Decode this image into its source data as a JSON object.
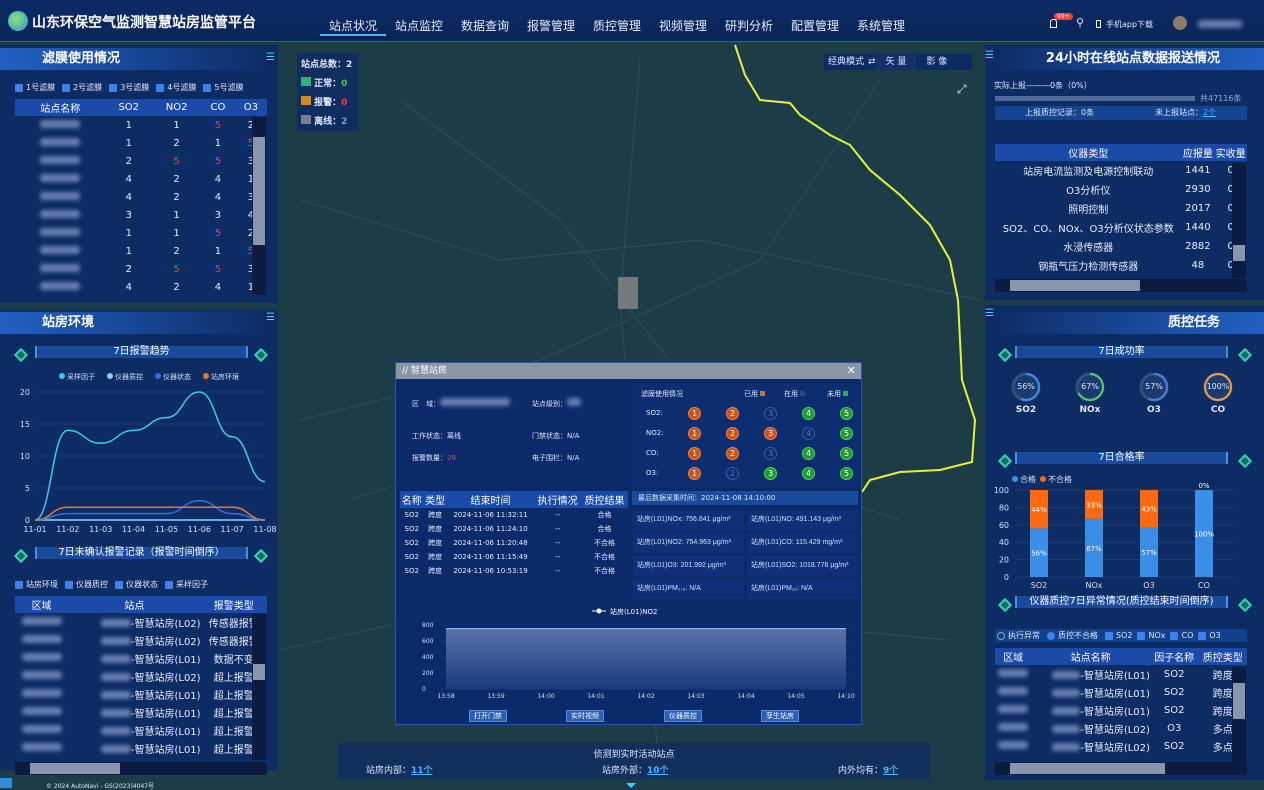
{
  "header": {
    "title": "山东环保空气监测智慧站房监管平台",
    "nav": [
      "站点状况",
      "站点监控",
      "数据查询",
      "报警管理",
      "质控管理",
      "视频管理",
      "研判分析",
      "配置管理",
      "系统管理"
    ],
    "active_nav": "站点状况",
    "badge": "99+",
    "app_download": "手机app下载"
  },
  "map": {
    "total_label": "站点总数：",
    "total": "2",
    "normal_label": "正常：",
    "normal": "0",
    "alarm_label": "报警：",
    "alarm": "0",
    "offline_label": "离线：",
    "offline": "2",
    "mode_label": "经典模式",
    "vector": "矢 量",
    "image": "影 像",
    "copyright": "© 2024 AutoNavi - GS(2023)4047号"
  },
  "filter_usage": {
    "title": "滤膜使用情况",
    "checks": [
      "1号滤膜",
      "2号滤膜",
      "3号滤膜",
      "4号滤膜",
      "5号滤膜"
    ],
    "columns": [
      "站点名称",
      "SO2",
      "NO2",
      "CO",
      "O3"
    ],
    "rows": [
      [
        1,
        1,
        5,
        2
      ],
      [
        1,
        2,
        1,
        5
      ],
      [
        2,
        5,
        5,
        3
      ],
      [
        4,
        2,
        4,
        1
      ],
      [
        4,
        2,
        4,
        3
      ],
      [
        3,
        1,
        3,
        4
      ],
      [
        1,
        1,
        5,
        2
      ],
      [
        1,
        2,
        1,
        5
      ],
      [
        2,
        5,
        5,
        3
      ],
      [
        4,
        2,
        4,
        1
      ]
    ]
  },
  "room_env": {
    "title": "站房环境",
    "trend_title": "7日报警趋势",
    "unconfirmed_title": "7日未确认报警记录（报警时间倒序）",
    "checks": [
      "站房环境",
      "仪器质控",
      "仪器状态",
      "采样因子"
    ],
    "columns": [
      "区域",
      "站点",
      "报警类型"
    ],
    "rows": [
      [
        "-智慧站房(L02)",
        "传感器报警"
      ],
      [
        "-智慧站房(L02)",
        "传感器报警"
      ],
      [
        "-智慧站房(L01)",
        "数据不变"
      ],
      [
        "-智慧站房(L02)",
        "超上报警"
      ],
      [
        "-智慧站房(L01)",
        "超上报警"
      ],
      [
        "-智慧站房(L01)",
        "超上报警"
      ],
      [
        "-智慧站房(L01)",
        "超上报警"
      ],
      [
        "-智慧站房(L01)",
        "超上报警"
      ]
    ]
  },
  "report24": {
    "title": "24小时在线站点数据报送情况",
    "actual": "实际上报———0条（0%）",
    "total": "共47116条",
    "progress": 0,
    "qc_records": "上报质控记录：0条",
    "unreported_label": "未上报站点：",
    "unreported": "2个",
    "columns": [
      "仪器类型",
      "应报量",
      "实收量"
    ],
    "rows": [
      [
        "站房电流监测及电源控制联动",
        "1441",
        "0"
      ],
      [
        "O3分析仪",
        "2930",
        "0"
      ],
      [
        "照明控制",
        "2017",
        "0"
      ],
      [
        "SO2、CO、NOx、O3分析仪状态参数",
        "1440",
        "0"
      ],
      [
        "水浸传感器",
        "2882",
        "0"
      ],
      [
        "钢瓶气压力检测传感器",
        "48",
        "0"
      ]
    ]
  },
  "qc": {
    "title": "质控任务",
    "success_title": "7日成功率",
    "success": [
      {
        "name": "SO2",
        "value": 56,
        "label": "56%",
        "color": "#3a8ff0"
      },
      {
        "name": "NOx",
        "value": 67,
        "label": "67%",
        "color": "#4fd060"
      },
      {
        "name": "O3",
        "value": 57,
        "label": "57%",
        "color": "#4a7fe0"
      },
      {
        "name": "CO",
        "value": 100,
        "label": "100%",
        "color": "#f0a040"
      }
    ],
    "pass_title": "7日合格率",
    "abn_title": "仪器质控7日异常情况(质控结束时间倒序)",
    "radios": [
      "执行异常",
      "质控不合格"
    ],
    "checks": [
      "SO2",
      "NOx",
      "CO",
      "O3"
    ],
    "columns": [
      "区域",
      "站点名称",
      "因子名称",
      "质控类型"
    ],
    "rows": [
      [
        "-智慧站房(L01)",
        "SO2",
        "跨度"
      ],
      [
        "-智慧站房(L01)",
        "SO2",
        "跨度"
      ],
      [
        "-智慧站房(L01)",
        "SO2",
        "跨度"
      ],
      [
        "-智慧站房(L02)",
        "O3",
        "多点"
      ],
      [
        "-智慧站房(L02)",
        "SO2",
        "多点"
      ]
    ]
  },
  "modal": {
    "title": "智慧站房",
    "area_label": "区　域：",
    "level_label": "站点级别：",
    "work_label": "工作状态：",
    "work": "离线",
    "door_label": "门禁状态：",
    "door": "N/A",
    "alarm_label": "报警数量：",
    "alarm": "28",
    "fence_label": "电子围栏：",
    "fence": "N/A",
    "usage_title": "滤膜使用情况",
    "legend": [
      "已用",
      "在用",
      "未用"
    ],
    "usage": [
      {
        "f": "SO2:",
        "s": [
          "o",
          "o",
          "b",
          "g",
          "g"
        ]
      },
      {
        "f": "NO2:",
        "s": [
          "o",
          "o",
          "o",
          "b",
          "g"
        ]
      },
      {
        "f": "CO:",
        "s": [
          "o",
          "o",
          "b",
          "g",
          "g"
        ]
      },
      {
        "f": "O3:",
        "s": [
          "o",
          "b",
          "g",
          "g",
          "g"
        ]
      }
    ],
    "qc_cols": [
      "名称",
      "类型",
      "结束时间",
      "执行情况",
      "质控结果"
    ],
    "qc_rows": [
      [
        "SO2",
        "跨度",
        "2024-11-06 11:32:11",
        "--",
        "合格"
      ],
      [
        "SO2",
        "跨度",
        "2024-11-06 11:24:10",
        "--",
        "合格"
      ],
      [
        "SO2",
        "跨度",
        "2024-11-06 11:20:48",
        "--",
        "不合格"
      ],
      [
        "SO2",
        "跨度",
        "2024-11-06 11:15:49",
        "--",
        "不合格"
      ],
      [
        "SO2",
        "跨度",
        "2024-11-06 10:53:19",
        "--",
        "不合格"
      ]
    ],
    "last_time": "最后数据采集时间：2024-11-08 14:10:00",
    "values": [
      "站房(L01)NOx: 756.841 μg/m³",
      "站房(L01)NO: 491.143 μg/m³",
      "站房(L01)NO2: 754.963 μg/m³",
      "站房(L01)CO: 115.429 mg/m³",
      "站房(L01)O3: 201.992 μg/m³",
      "站房(L01)SO2: 1018.776 μg/m³",
      "站房(L01)PM₂.₅: N/A",
      "站房(L01)PM₁₀: N/A"
    ],
    "buttons": [
      "打开门禁",
      "实时视频",
      "仪器质控",
      "孪生站房"
    ]
  },
  "bottom": {
    "title": "侦测到实时活动站点",
    "inside_label": "站房内部：",
    "inside": "11个",
    "outside_label": "站房外部：",
    "outside": "10个",
    "both_label": "内外均有：",
    "both": "9个"
  },
  "colors": {
    "accent": "#4fb3ff",
    "orange": "#ff6a10",
    "alarm": "#ff3a3a",
    "normal": "#3fd14a"
  },
  "chart_data": [
    {
      "type": "line",
      "title": "7日报警趋势",
      "categories": [
        "11-01",
        "11-02",
        "11-03",
        "11-04",
        "11-05",
        "11-06",
        "11-07",
        "11-08"
      ],
      "ylim": [
        0,
        20
      ],
      "yticks": [
        0,
        5,
        10,
        15,
        20
      ],
      "legend": "top",
      "series": [
        {
          "name": "采样因子",
          "color": "#3cc8f0",
          "values": [
            0,
            14,
            12,
            14,
            16,
            20,
            13,
            6
          ]
        },
        {
          "name": "仪器质控",
          "color": "#8fd0ff",
          "values": [
            0,
            0,
            0,
            0,
            0,
            0,
            0,
            0
          ]
        },
        {
          "name": "仪器状态",
          "color": "#2f6fe0",
          "values": [
            0,
            1,
            1,
            1,
            1,
            3,
            1,
            0
          ]
        },
        {
          "name": "站房环境",
          "color": "#e07a30",
          "values": [
            0,
            2,
            2,
            2,
            2,
            2,
            2,
            0
          ]
        }
      ]
    },
    {
      "type": "bar",
      "stacked": true,
      "title": "7日合格率",
      "categories": [
        "SO2",
        "NOx",
        "O3",
        "CO"
      ],
      "ylim": [
        0,
        100
      ],
      "yticks": [
        0,
        20,
        40,
        60,
        80,
        100
      ],
      "legend": "top-left",
      "series": [
        {
          "name": "合格",
          "color": "#3a8ee6",
          "values": [
            56,
            67,
            57,
            100
          ],
          "labels": [
            "56%",
            "67%",
            "57%",
            "100%"
          ]
        },
        {
          "name": "不合格",
          "color": "#ff6a10",
          "values": [
            44,
            33,
            43,
            0
          ],
          "labels": [
            "44%",
            "33%",
            "43%",
            "0%"
          ]
        }
      ]
    },
    {
      "type": "area",
      "legend": "top",
      "categories": [
        "13:58",
        "13:59",
        "14:00",
        "14:01",
        "14:02",
        "14:03",
        "14:04",
        "14:05",
        "14:10"
      ],
      "ylim": [
        0,
        800
      ],
      "yticks": [
        0,
        200,
        400,
        600,
        800
      ],
      "series": [
        {
          "name": "站房(L01)NO2",
          "color": "#a8c4ff",
          "values": [
            755,
            755,
            755,
            755,
            755,
            755,
            755,
            755,
            755
          ]
        }
      ]
    }
  ]
}
